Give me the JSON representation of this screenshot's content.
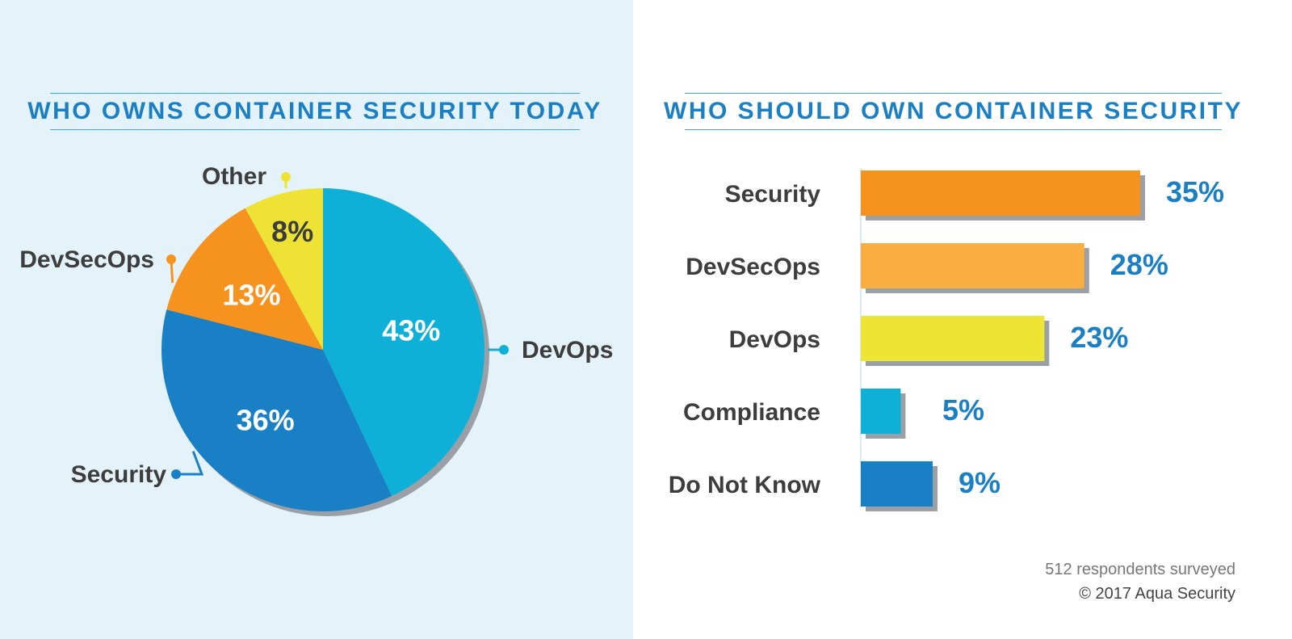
{
  "pie_chart": {
    "title": "WHO OWNS CONTAINER SECURITY TODAY"
  },
  "bar_chart": {
    "title": "WHO SHOULD OWN CONTAINER SECURITY"
  },
  "footer": {
    "respondents": "512 respondents surveyed",
    "copyright": "© 2017 Aqua Security"
  },
  "colors": {
    "left_background": "#e4f2f9",
    "title_blue": "#1a7fc3",
    "label_dark": "#3d3d3d",
    "shadow": "#9aa0a6"
  },
  "chart_data": [
    {
      "type": "pie",
      "title": "WHO OWNS CONTAINER SECURITY TODAY",
      "slices": [
        {
          "label": "DevOps",
          "value": 43,
          "value_label": "43%",
          "color": "#0fb0d8"
        },
        {
          "label": "Security",
          "value": 36,
          "value_label": "36%",
          "color": "#1a80c5"
        },
        {
          "label": "DevSecOps",
          "value": 13,
          "value_label": "13%",
          "color": "#f6921e"
        },
        {
          "label": "Other",
          "value": 8,
          "value_label": "8%",
          "color": "#eee334"
        }
      ]
    },
    {
      "type": "bar",
      "orientation": "horizontal",
      "title": "WHO SHOULD OWN CONTAINER SECURITY",
      "categories": [
        "Security",
        "DevSecOps",
        "DevOps",
        "Compliance",
        "Do Not Know"
      ],
      "values": [
        35,
        28,
        23,
        5,
        9
      ],
      "value_labels": [
        "35%",
        "28%",
        "23%",
        "5%",
        "9%"
      ],
      "colors": [
        "#f6921e",
        "#fbae40",
        "#ede434",
        "#0fb0d8",
        "#1a80c5"
      ],
      "xlim": [
        0,
        35
      ]
    }
  ]
}
